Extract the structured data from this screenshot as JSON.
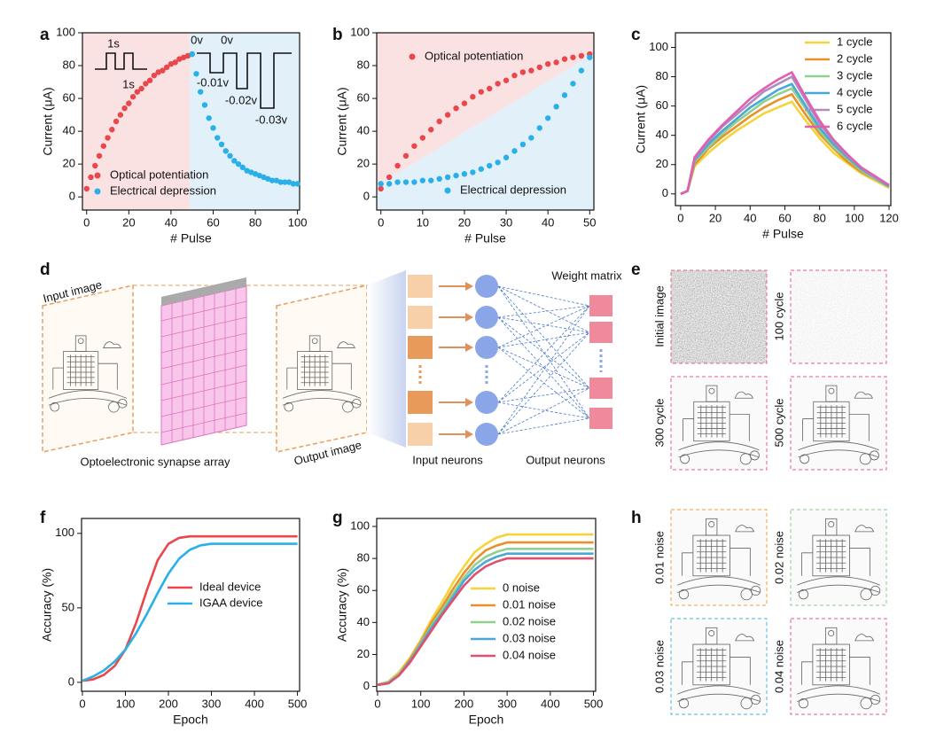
{
  "chart_data": [
    {
      "type": "scatter",
      "label": "a",
      "ylabel": "Current (μA)",
      "xlabel": "# Pulse",
      "xlim": [
        -2,
        101
      ],
      "ylim": [
        -8,
        100
      ],
      "xticks": [
        0,
        20,
        40,
        60,
        80,
        100
      ],
      "yticks": [
        0,
        20,
        40,
        60,
        80,
        100
      ],
      "annotations": [
        "1s",
        "1s",
        "0v",
        "0v",
        "-0.01v",
        "-0.02v",
        "-0.03v"
      ],
      "series": [
        {
          "name": "Optical potentiation",
          "color": "#e8474c",
          "x": [
            0,
            2,
            4,
            6,
            8,
            10,
            12,
            14,
            16,
            18,
            20,
            22,
            24,
            26,
            28,
            30,
            32,
            34,
            36,
            38,
            40,
            42,
            44,
            46,
            48,
            50
          ],
          "values": [
            5,
            12,
            19,
            25,
            31,
            36,
            41,
            46,
            50,
            54,
            57,
            61,
            64,
            66,
            69,
            71,
            74,
            76,
            77,
            79,
            81,
            82,
            84,
            85,
            86,
            87
          ]
        },
        {
          "name": "Electrical depression",
          "color": "#2ab0e8",
          "x": [
            50,
            52,
            54,
            56,
            58,
            60,
            62,
            64,
            66,
            68,
            70,
            72,
            74,
            76,
            78,
            80,
            82,
            84,
            86,
            88,
            90,
            92,
            94,
            96,
            98,
            100
          ],
          "values": [
            87,
            75,
            64,
            56,
            48,
            42,
            36,
            32,
            28,
            25,
            22,
            20,
            18,
            16,
            15,
            14,
            13,
            12,
            11,
            10,
            10,
            9,
            9,
            9,
            8,
            8
          ]
        }
      ]
    },
    {
      "type": "scatter",
      "label": "b",
      "ylabel": "Current (μA)",
      "xlabel": "# Pulse",
      "xlim": [
        -1,
        51
      ],
      "ylim": [
        -8,
        100
      ],
      "xticks": [
        0,
        10,
        20,
        30,
        40,
        50
      ],
      "yticks": [
        0,
        20,
        40,
        60,
        80,
        100
      ],
      "series": [
        {
          "name": "Optical potentiation",
          "color": "#e8474c",
          "x": [
            0,
            2,
            4,
            6,
            8,
            10,
            12,
            14,
            16,
            18,
            20,
            22,
            24,
            26,
            28,
            30,
            32,
            34,
            36,
            38,
            40,
            42,
            44,
            46,
            48,
            50
          ],
          "values": [
            5,
            12,
            19,
            25,
            31,
            36,
            41,
            46,
            50,
            54,
            57,
            61,
            64,
            66,
            69,
            71,
            74,
            76,
            77,
            79,
            81,
            82,
            84,
            85,
            86,
            87
          ]
        },
        {
          "name": "Electrical depression",
          "color": "#2ab0e8",
          "x": [
            0,
            2,
            4,
            6,
            8,
            10,
            12,
            14,
            16,
            18,
            20,
            22,
            24,
            26,
            28,
            30,
            32,
            34,
            36,
            38,
            40,
            42,
            44,
            46,
            48,
            50
          ],
          "values": [
            8,
            8,
            9,
            9,
            9,
            10,
            10,
            11,
            12,
            13,
            14,
            15,
            17,
            19,
            21,
            24,
            28,
            32,
            36,
            42,
            48,
            55,
            62,
            69,
            77,
            85
          ]
        }
      ]
    },
    {
      "type": "line",
      "label": "c",
      "ylabel": "Current (μA)",
      "xlabel": "# Pulse",
      "xlim": [
        -3,
        121
      ],
      "ylim": [
        -8,
        110
      ],
      "xticks": [
        0,
        20,
        40,
        60,
        80,
        100,
        120
      ],
      "yticks": [
        0,
        20,
        40,
        60,
        80,
        100
      ],
      "x": [
        0,
        4,
        8,
        16,
        24,
        32,
        40,
        48,
        56,
        64,
        72,
        80,
        88,
        96,
        104,
        112,
        120
      ],
      "series": [
        {
          "name": "1 cycle",
          "color": "#f5d33a",
          "values": [
            0,
            2,
            19,
            28,
            36,
            43,
            49,
            55,
            59,
            63,
            50,
            38,
            28,
            21,
            14,
            9,
            4
          ]
        },
        {
          "name": "2 cycle",
          "color": "#e8902a",
          "values": [
            0,
            2,
            20,
            31,
            39,
            46,
            53,
            59,
            64,
            68,
            54,
            41,
            31,
            22,
            15,
            10,
            5
          ]
        },
        {
          "name": "3 cycle",
          "color": "#8fd18f",
          "values": [
            0,
            2,
            22,
            32,
            41,
            49,
            56,
            63,
            68,
            72,
            58,
            43,
            32,
            24,
            16,
            10,
            5
          ]
        },
        {
          "name": "4 cycle",
          "color": "#4aa8d8",
          "values": [
            0,
            2,
            23,
            34,
            43,
            51,
            59,
            65,
            71,
            75,
            60,
            45,
            34,
            25,
            17,
            11,
            5
          ]
        },
        {
          "name": "5 cycle",
          "color": "#b08cc0",
          "values": [
            0,
            2,
            24,
            36,
            46,
            54,
            62,
            70,
            75,
            80,
            64,
            48,
            36,
            26,
            18,
            11,
            6
          ]
        },
        {
          "name": "6 cycle",
          "color": "#e060b0",
          "values": [
            0,
            2,
            25,
            37,
            47,
            56,
            65,
            72,
            78,
            83,
            66,
            50,
            37,
            27,
            18,
            12,
            6
          ]
        }
      ]
    },
    {
      "type": "line",
      "label": "f",
      "ylabel": "Accuracy (%)",
      "xlabel": "Epoch",
      "xlim": [
        -2,
        505
      ],
      "ylim": [
        -6,
        110
      ],
      "xticks": [
        0,
        100,
        200,
        300,
        400,
        500
      ],
      "yticks": [
        0,
        50,
        100
      ],
      "x": [
        0,
        25,
        50,
        75,
        100,
        125,
        150,
        175,
        200,
        225,
        250,
        275,
        300,
        325,
        350,
        375,
        400,
        425,
        450,
        475,
        500
      ],
      "series": [
        {
          "name": "Ideal device",
          "color": "#e8474c",
          "values": [
            1,
            2,
            5,
            11,
            22,
            40,
            62,
            82,
            93,
            97,
            98,
            98,
            98,
            98,
            98,
            98,
            98,
            98,
            98,
            98,
            98
          ]
        },
        {
          "name": "IGAA device",
          "color": "#2ab0e8",
          "values": [
            1,
            4,
            8,
            14,
            22,
            33,
            46,
            60,
            73,
            83,
            89,
            92,
            93,
            93,
            93,
            93,
            93,
            93,
            93,
            93,
            93
          ]
        }
      ]
    },
    {
      "type": "line",
      "label": "g",
      "ylabel": "Accuracy (%)",
      "xlabel": "Epoch",
      "xlim": [
        -2,
        505
      ],
      "ylim": [
        -3,
        105
      ],
      "xticks": [
        0,
        100,
        200,
        300,
        400,
        500
      ],
      "yticks": [
        0,
        20,
        40,
        60,
        80,
        100
      ],
      "x": [
        0,
        25,
        50,
        75,
        100,
        125,
        150,
        175,
        200,
        225,
        250,
        275,
        300,
        325,
        350,
        375,
        400,
        425,
        450,
        475,
        500
      ],
      "series": [
        {
          "name": "0 noise",
          "color": "#f5d33a",
          "values": [
            1,
            3,
            9,
            18,
            29,
            42,
            53,
            65,
            75,
            84,
            89,
            93,
            95,
            95,
            95,
            95,
            95,
            95,
            95,
            95,
            95
          ]
        },
        {
          "name": "0.01 noise",
          "color": "#e8902a",
          "values": [
            1,
            3,
            8,
            17,
            28,
            40,
            50,
            61,
            71,
            79,
            85,
            88,
            90,
            90,
            90,
            90,
            90,
            90,
            90,
            90,
            90
          ]
        },
        {
          "name": "0.02 noise",
          "color": "#8fd18f",
          "values": [
            1,
            3,
            8,
            16,
            27,
            38,
            48,
            58,
            68,
            76,
            81,
            84,
            86,
            86,
            86,
            86,
            86,
            86,
            86,
            86,
            86
          ]
        },
        {
          "name": "0.03 noise",
          "color": "#4aa8d8",
          "values": [
            1,
            2,
            7,
            16,
            26,
            37,
            46,
            56,
            66,
            73,
            78,
            81,
            83,
            83,
            83,
            83,
            83,
            83,
            83,
            83,
            83
          ]
        },
        {
          "name": "0.04 noise",
          "color": "#e0506e",
          "values": [
            1,
            2,
            7,
            15,
            25,
            35,
            45,
            54,
            63,
            70,
            75,
            78,
            80,
            80,
            80,
            80,
            80,
            80,
            80,
            80,
            80
          ]
        }
      ]
    }
  ],
  "diagram_d": {
    "label": "d",
    "input_image": "Input image",
    "array": "Optoelectronic synapse array",
    "output_image": "Output image",
    "weight_matrix": "Weight matrix",
    "input_neurons": "Input neurons",
    "output_neurons": "Output neurons"
  },
  "images_e": {
    "label": "e",
    "captions": [
      "Initial image",
      "100 cycle",
      "300 cycle",
      "500 cycle"
    ]
  },
  "images_h": {
    "label": "h",
    "captions": [
      "0.01 noise",
      "0.02 noise",
      "0.03 noise",
      "0.04 noise"
    ]
  }
}
